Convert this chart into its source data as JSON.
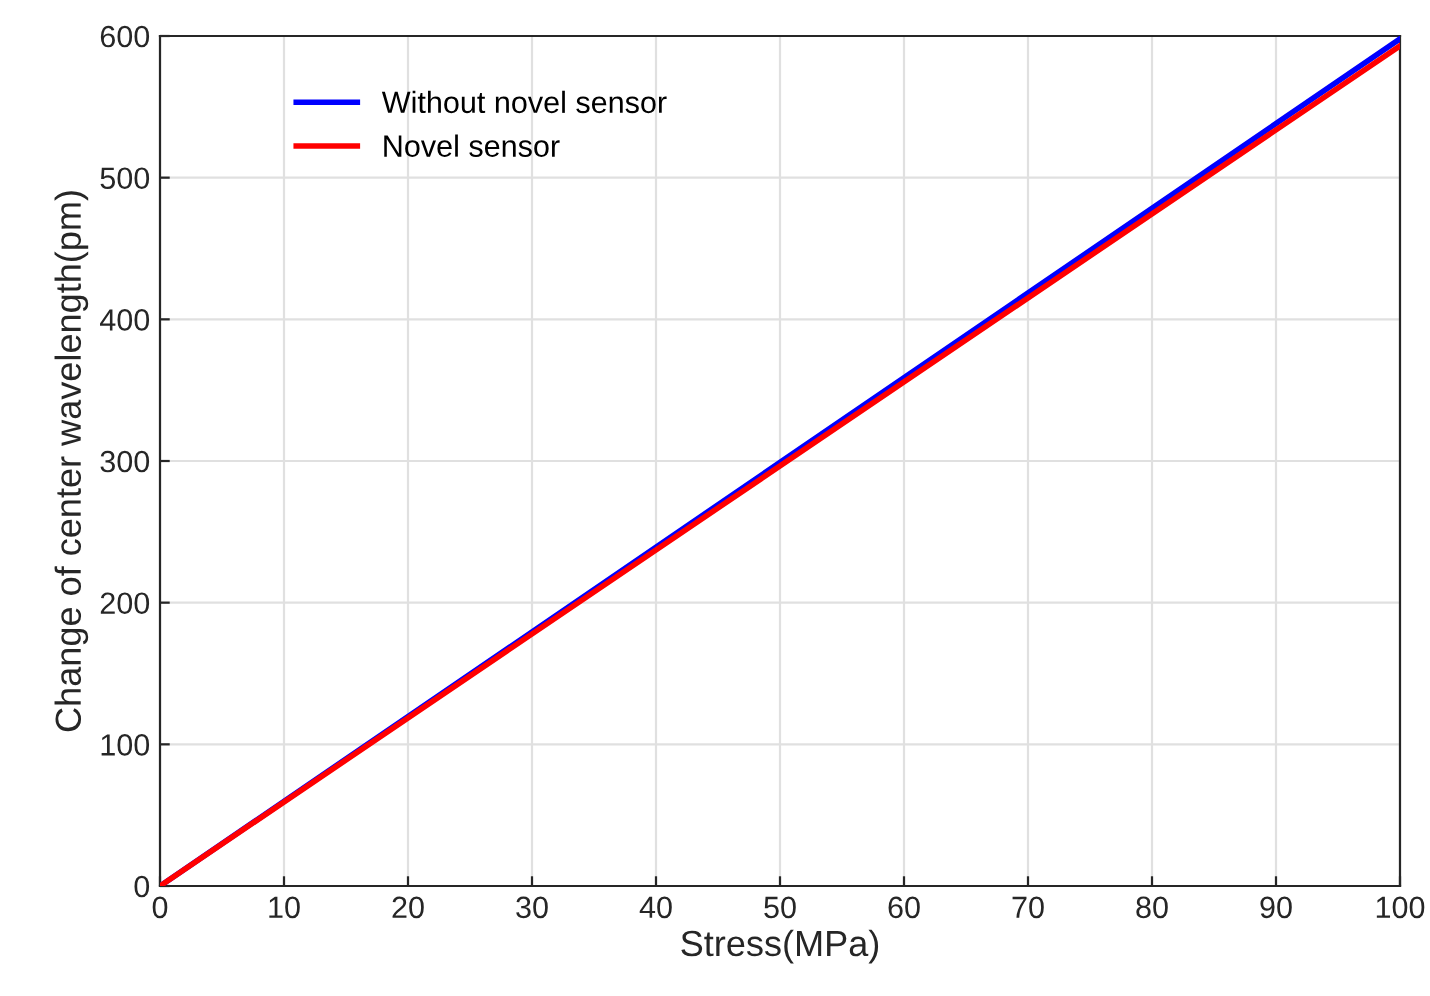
{
  "chart_data": {
    "type": "line",
    "xlabel": "Stress(MPa)",
    "ylabel": "Change of center wavelength(pm)",
    "x": [
      0,
      100
    ],
    "series": [
      {
        "name": "Without novel sensor",
        "color": "#0000ff",
        "values": [
          0,
          598
        ]
      },
      {
        "name": "Novel sensor",
        "color": "#ff0000",
        "values": [
          0,
          593
        ]
      }
    ],
    "xlim": [
      0,
      100
    ],
    "xticks": [
      0,
      10,
      20,
      30,
      40,
      50,
      60,
      70,
      80,
      90,
      100
    ],
    "ylim": [
      0,
      600
    ],
    "yticks": [
      0,
      100,
      200,
      300,
      400,
      500,
      600
    ],
    "grid": true,
    "legend": "top left",
    "marker": "none",
    "line_style": "solid"
  }
}
